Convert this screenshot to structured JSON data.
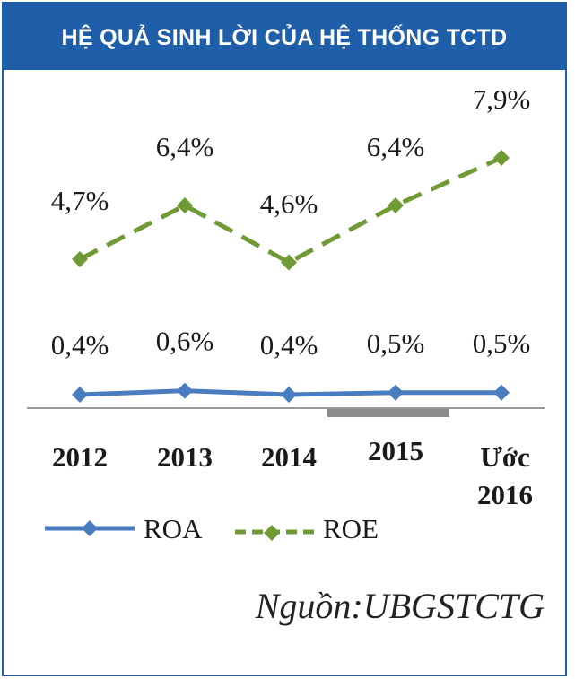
{
  "colors": {
    "header_bg": "#1f5ea8",
    "roa": "#4a7cc0",
    "roe": "#6f9a35",
    "baseline": "#777777",
    "highlight_bar": "#8c8c8c"
  },
  "header": {
    "title": "HỆ QUẢ SINH LỜI CỦA HỆ THỐNG TCTD"
  },
  "chart_data": {
    "type": "line",
    "categories": [
      "2012",
      "2013",
      "2014",
      "2015",
      "Ước 2016"
    ],
    "category_lines": [
      [
        "2012"
      ],
      [
        "2013"
      ],
      [
        "2014"
      ],
      [
        "2015"
      ],
      [
        "Ước",
        "2016"
      ]
    ],
    "series": [
      {
        "name": "ROA",
        "values": [
          0.4,
          0.6,
          0.4,
          0.5,
          0.5
        ],
        "labels": [
          "0,4%",
          "0,6%",
          "0,4%",
          "0,5%",
          "0,5%"
        ],
        "style": "solid"
      },
      {
        "name": "ROE",
        "values": [
          4.7,
          6.4,
          4.6,
          6.4,
          7.9
        ],
        "labels": [
          "4,7%",
          "6,4%",
          "4,6%",
          "6,4%",
          "7,9%"
        ],
        "style": "dashed"
      }
    ],
    "ylabel": "",
    "xlabel": "",
    "legend_position": "bottom-left"
  },
  "source": "Nguồn:UBGSTCTG"
}
